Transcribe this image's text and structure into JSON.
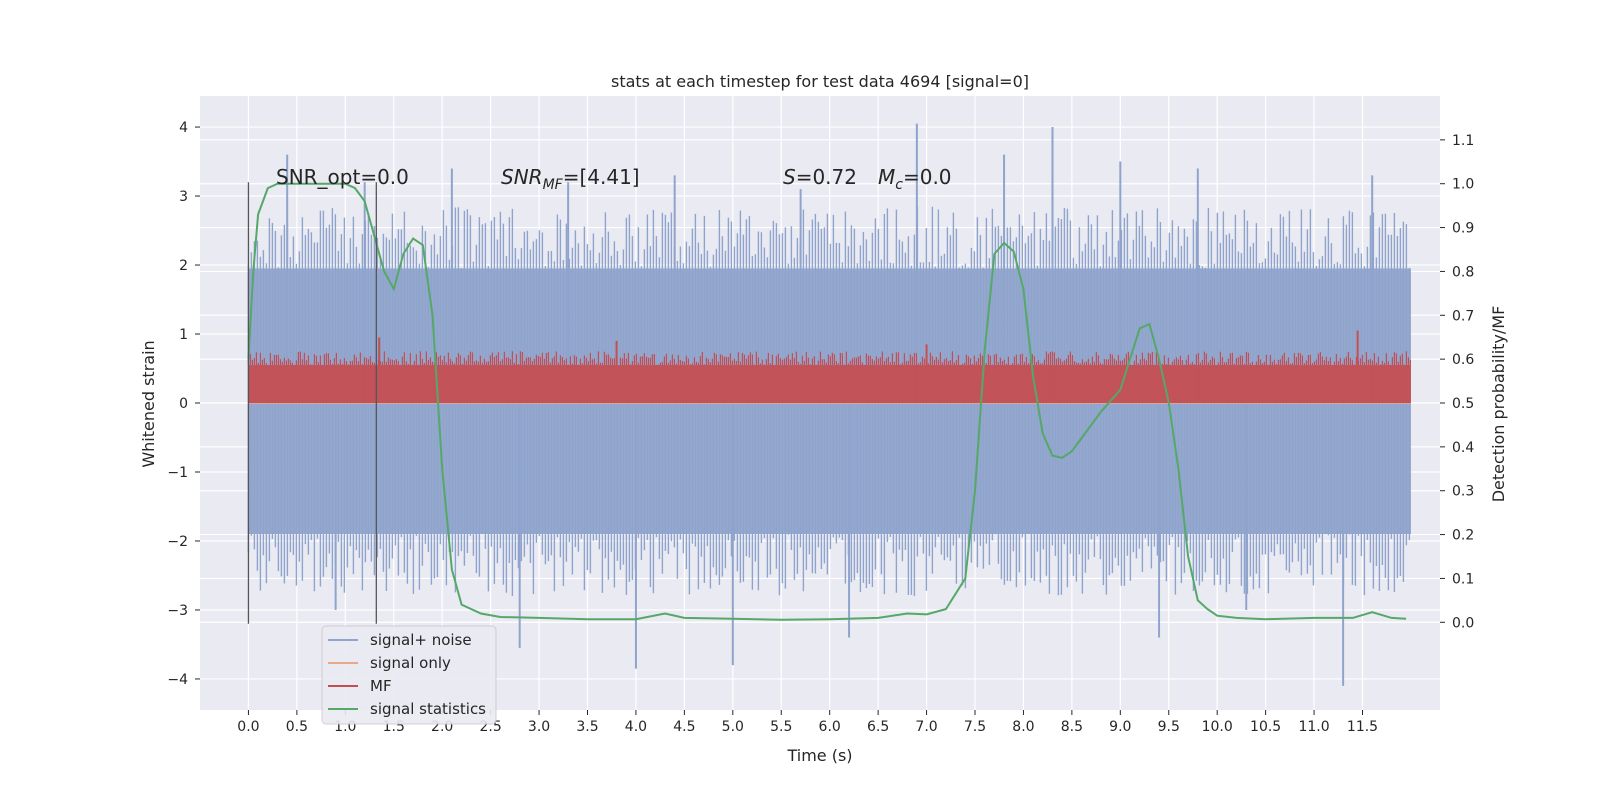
{
  "chart_data": {
    "type": "line",
    "title": "stats at each timestep for test data 4694 [signal=0]",
    "xlabel": "Time (s)",
    "ylabel": "Whitened strain",
    "ylabel_right": "Detection probability/MF",
    "xlim": [
      -0.5,
      12.3
    ],
    "ylim": [
      -4.45,
      4.45
    ],
    "ylim_right": [
      -0.2,
      1.2
    ],
    "x_ticks": [
      "0.0",
      "0.5",
      "1.0",
      "1.5",
      "2.0",
      "2.5",
      "3.0",
      "3.5",
      "4.0",
      "4.5",
      "5.0",
      "5.5",
      "6.0",
      "6.5",
      "7.0",
      "7.5",
      "8.0",
      "8.5",
      "9.0",
      "9.5",
      "10.0",
      "10.5",
      "11.0",
      "11.5"
    ],
    "y_ticks": [
      "−4",
      "−3",
      "−2",
      "−1",
      "0",
      "1",
      "2",
      "3",
      "4"
    ],
    "y_ticks_right": [
      "0.0",
      "0.1",
      "0.2",
      "0.3",
      "0.4",
      "0.5",
      "0.6",
      "0.7",
      "0.8",
      "0.9",
      "1.0",
      "1.1"
    ],
    "grid": true,
    "legend_position": "lower-left",
    "legend": [
      "signal+ noise",
      "signal only",
      "MF",
      "signal statistics"
    ],
    "annotations": {
      "snr_opt": "SNR_opt=0.0",
      "snr_mf_prefix": "SNR",
      "snr_mf_sub": "MF",
      "snr_mf_value": "=[4.41]",
      "s_symbol": "S",
      "s_value": "=0.72",
      "mc_symbol": "M",
      "mc_sub": "c",
      "mc_value": "=0.0"
    },
    "vertical_lines_x": [
      0.0,
      1.32
    ],
    "series": [
      {
        "name": "signal+ noise",
        "color": "#8fa4cc",
        "axis": "left",
        "x_range": [
          0.0,
          12.0
        ],
        "dense_envelope": [
          -1.9,
          1.95
        ],
        "spikes": [
          [
            0.4,
            3.6
          ],
          [
            0.9,
            -3.0
          ],
          [
            1.2,
            3.2
          ],
          [
            2.1,
            3.4
          ],
          [
            2.8,
            -3.55
          ],
          [
            3.3,
            3.2
          ],
          [
            4.0,
            -3.85
          ],
          [
            4.4,
            3.3
          ],
          [
            5.0,
            -3.8
          ],
          [
            5.7,
            3.1
          ],
          [
            6.2,
            -3.4
          ],
          [
            6.9,
            4.05
          ],
          [
            7.8,
            3.6
          ],
          [
            8.3,
            4.0
          ],
          [
            9.0,
            3.5
          ],
          [
            9.4,
            -3.4
          ],
          [
            9.8,
            3.4
          ],
          [
            10.3,
            -3.0
          ],
          [
            11.3,
            -4.1
          ],
          [
            11.6,
            3.3
          ]
        ]
      },
      {
        "name": "signal only",
        "color": "#e8a987",
        "axis": "left",
        "x": [
          0.0,
          12.0
        ],
        "y": [
          0.0,
          0.0
        ]
      },
      {
        "name": "MF",
        "color": "#c44e52",
        "axis": "left",
        "x_range": [
          0.0,
          12.0
        ],
        "band": [
          0.0,
          0.55
        ],
        "peaks": [
          [
            1.35,
            0.95
          ],
          [
            3.8,
            0.9
          ],
          [
            7.0,
            0.85
          ],
          [
            11.45,
            1.05
          ]
        ]
      },
      {
        "name": "signal statistics",
        "color": "#55a868",
        "axis": "right",
        "x": [
          0.0,
          0.05,
          0.1,
          0.2,
          0.3,
          0.5,
          0.8,
          1.0,
          1.1,
          1.2,
          1.3,
          1.4,
          1.5,
          1.6,
          1.7,
          1.8,
          1.9,
          2.0,
          2.1,
          2.2,
          2.4,
          2.6,
          3.0,
          3.5,
          4.0,
          4.3,
          4.5,
          5.0,
          5.5,
          6.0,
          6.5,
          6.8,
          7.0,
          7.2,
          7.4,
          7.5,
          7.6,
          7.7,
          7.8,
          7.9,
          8.0,
          8.1,
          8.2,
          8.3,
          8.4,
          8.5,
          8.6,
          8.8,
          9.0,
          9.2,
          9.3,
          9.4,
          9.5,
          9.6,
          9.7,
          9.8,
          9.9,
          10.0,
          10.2,
          10.5,
          11.0,
          11.4,
          11.6,
          11.8,
          11.95
        ],
        "y": [
          0.6,
          0.8,
          0.93,
          0.99,
          1.0,
          1.0,
          1.0,
          1.0,
          0.99,
          0.96,
          0.88,
          0.8,
          0.76,
          0.84,
          0.875,
          0.86,
          0.7,
          0.35,
          0.12,
          0.04,
          0.02,
          0.012,
          0.01,
          0.007,
          0.007,
          0.02,
          0.01,
          0.008,
          0.006,
          0.007,
          0.01,
          0.02,
          0.018,
          0.03,
          0.1,
          0.3,
          0.62,
          0.84,
          0.865,
          0.845,
          0.76,
          0.56,
          0.43,
          0.38,
          0.375,
          0.39,
          0.42,
          0.48,
          0.53,
          0.67,
          0.68,
          0.6,
          0.5,
          0.35,
          0.15,
          0.05,
          0.03,
          0.015,
          0.01,
          0.007,
          0.01,
          0.01,
          0.023,
          0.01,
          0.008
        ]
      }
    ]
  }
}
